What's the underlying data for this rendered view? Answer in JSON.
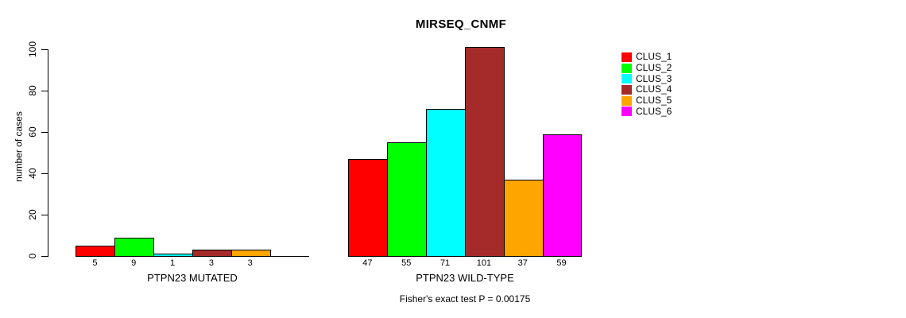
{
  "chart_data": {
    "type": "bar",
    "title": "MIRSEQ_CNMF",
    "ylabel": "number of cases",
    "ylim": [
      0,
      100
    ],
    "yticks": [
      0,
      20,
      40,
      60,
      80,
      100
    ],
    "grid": false,
    "legend_position": "right-outside",
    "legend": [
      {
        "name": "CLUS_1",
        "color": "#FF0000"
      },
      {
        "name": "CLUS_2",
        "color": "#00FF00"
      },
      {
        "name": "CLUS_3",
        "color": "#00FFFF"
      },
      {
        "name": "CLUS_4",
        "color": "#A52A2A"
      },
      {
        "name": "CLUS_5",
        "color": "#FFA500"
      },
      {
        "name": "CLUS_6",
        "color": "#FF00FF"
      }
    ],
    "groups": [
      {
        "label": "PTPN23 MUTATED",
        "values": [
          5,
          9,
          1,
          3,
          3,
          0
        ],
        "bar_labels": [
          "5",
          "9",
          "1",
          "3",
          "3",
          ""
        ]
      },
      {
        "label": "PTPN23 WILD-TYPE",
        "values": [
          47,
          55,
          71,
          101,
          37,
          59
        ],
        "bar_labels": [
          "47",
          "55",
          "71",
          "101",
          "37",
          "59"
        ]
      }
    ],
    "footnote": "Fisher's exact test P = 0.00175",
    "bar_border_color": "#000000",
    "background_color": "#FFFFFF"
  }
}
